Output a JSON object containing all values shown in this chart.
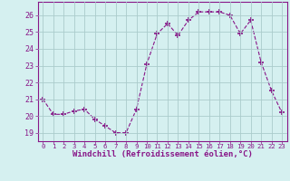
{
  "x": [
    0,
    1,
    2,
    3,
    4,
    5,
    6,
    7,
    8,
    9,
    10,
    11,
    12,
    13,
    14,
    15,
    16,
    17,
    18,
    19,
    20,
    21,
    22,
    23
  ],
  "y": [
    21.0,
    20.1,
    20.1,
    20.3,
    20.4,
    19.8,
    19.4,
    19.0,
    19.0,
    20.4,
    23.1,
    24.9,
    25.5,
    24.8,
    25.7,
    26.2,
    26.2,
    26.2,
    26.0,
    24.9,
    25.7,
    23.2,
    21.5,
    20.2
  ],
  "line_color": "#881688",
  "marker": "+",
  "marker_size": 4,
  "bg_color": "#d5f0f0",
  "grid_color": "#aacccc",
  "xlabel": "Windchill (Refroidissement éolien,°C)",
  "xlim": [
    -0.5,
    23.5
  ],
  "ylim": [
    18.5,
    26.8
  ],
  "yticks": [
    19,
    20,
    21,
    22,
    23,
    24,
    25,
    26
  ],
  "xticks": [
    0,
    1,
    2,
    3,
    4,
    5,
    6,
    7,
    8,
    9,
    10,
    11,
    12,
    13,
    14,
    15,
    16,
    17,
    18,
    19,
    20,
    21,
    22,
    23
  ],
  "tick_color": "#881688",
  "label_color": "#881688",
  "spine_color": "#881688"
}
